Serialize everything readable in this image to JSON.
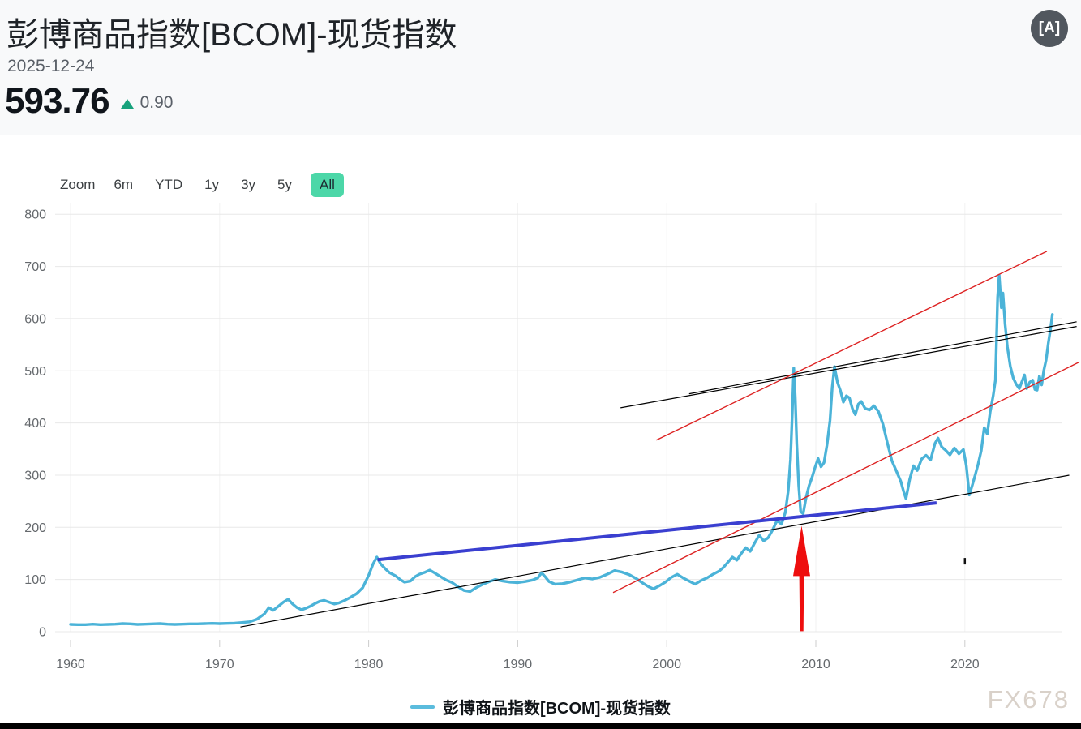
{
  "header": {
    "title": "彭博商品指数[BCOM]-现货指数",
    "date": "2025-12-24",
    "price": "593.76",
    "change": "0.90",
    "change_direction": "up",
    "change_color": "#17a27c",
    "lang_icon": "[A]"
  },
  "range_selector": {
    "zoom_label": "Zoom",
    "buttons": [
      "6m",
      "YTD",
      "1y",
      "3y",
      "5y",
      "All"
    ],
    "active": "All",
    "active_bg": "#4cd7a8"
  },
  "legend": {
    "series_label": "彭博商品指数[BCOM]-现货指数",
    "swatch_color": "#5bbcdd"
  },
  "watermark": "FX678",
  "chart_data": {
    "type": "line",
    "title": "彭博商品指数[BCOM]-现货指数",
    "xlabel": "",
    "ylabel": "",
    "xlim": [
      1959,
      2027.5
    ],
    "ylim": [
      0,
      800
    ],
    "x_ticks": [
      1960,
      1970,
      1980,
      1990,
      2000,
      2010,
      2020
    ],
    "y_ticks": [
      0,
      100,
      200,
      300,
      400,
      500,
      600,
      700,
      800
    ],
    "grid": true,
    "legend_position": "bottom",
    "style": {
      "h_grid": "#e8e8e8",
      "v_grid": "#f2f2f2",
      "tick": "#cccccc",
      "label": "#65696d"
    },
    "series": [
      {
        "name": "彭博商品指数[BCOM]-现货指数",
        "color": "#4bb3d8",
        "points": [
          [
            1960,
            14
          ],
          [
            1960.5,
            13.5
          ],
          [
            1961,
            13.5
          ],
          [
            1961.5,
            14.5
          ],
          [
            1962,
            13.5
          ],
          [
            1962.5,
            14
          ],
          [
            1963,
            14.5
          ],
          [
            1963.5,
            15.5
          ],
          [
            1964,
            15
          ],
          [
            1964.5,
            14
          ],
          [
            1965,
            14.5
          ],
          [
            1965.5,
            15
          ],
          [
            1966,
            15.5
          ],
          [
            1966.5,
            14.5
          ],
          [
            1967,
            14
          ],
          [
            1967.5,
            14.5
          ],
          [
            1968,
            15
          ],
          [
            1968.5,
            15
          ],
          [
            1969,
            15.5
          ],
          [
            1969.5,
            16
          ],
          [
            1970,
            15.5
          ],
          [
            1970.5,
            16
          ],
          [
            1971,
            16.5
          ],
          [
            1971.5,
            17.5
          ],
          [
            1972,
            19
          ],
          [
            1972.5,
            24
          ],
          [
            1973,
            34
          ],
          [
            1973.3,
            46
          ],
          [
            1973.6,
            41
          ],
          [
            1974,
            50
          ],
          [
            1974.3,
            57
          ],
          [
            1974.6,
            62
          ],
          [
            1974.9,
            53
          ],
          [
            1975.2,
            46
          ],
          [
            1975.5,
            42
          ],
          [
            1975.8,
            45
          ],
          [
            1976.1,
            49
          ],
          [
            1976.4,
            54
          ],
          [
            1976.7,
            58
          ],
          [
            1977,
            60
          ],
          [
            1977.3,
            57
          ],
          [
            1977.7,
            53
          ],
          [
            1978,
            55
          ],
          [
            1978.4,
            60
          ],
          [
            1978.8,
            66
          ],
          [
            1979.2,
            73
          ],
          [
            1979.6,
            84
          ],
          [
            1980,
            108
          ],
          [
            1980.3,
            130
          ],
          [
            1980.55,
            143
          ],
          [
            1980.8,
            130
          ],
          [
            1981.1,
            121
          ],
          [
            1981.4,
            113
          ],
          [
            1981.8,
            107
          ],
          [
            1982.1,
            100
          ],
          [
            1982.4,
            95
          ],
          [
            1982.8,
            97
          ],
          [
            1983.1,
            105
          ],
          [
            1983.4,
            110
          ],
          [
            1983.8,
            114
          ],
          [
            1984.1,
            118
          ],
          [
            1984.4,
            113
          ],
          [
            1984.8,
            106
          ],
          [
            1985.2,
            99
          ],
          [
            1985.6,
            94
          ],
          [
            1986,
            86
          ],
          [
            1986.4,
            79
          ],
          [
            1986.8,
            77
          ],
          [
            1987.2,
            84
          ],
          [
            1987.6,
            90
          ],
          [
            1988.1,
            96
          ],
          [
            1988.5,
            100
          ],
          [
            1989,
            97
          ],
          [
            1989.5,
            95
          ],
          [
            1990,
            94
          ],
          [
            1990.5,
            96
          ],
          [
            1991,
            99
          ],
          [
            1991.35,
            103
          ],
          [
            1991.6,
            113
          ],
          [
            1991.85,
            105
          ],
          [
            1992.1,
            96
          ],
          [
            1992.5,
            91
          ],
          [
            1993,
            92
          ],
          [
            1993.5,
            95
          ],
          [
            1994,
            99
          ],
          [
            1994.5,
            103
          ],
          [
            1995,
            101
          ],
          [
            1995.5,
            104
          ],
          [
            1996,
            110
          ],
          [
            1996.5,
            117
          ],
          [
            1997,
            114
          ],
          [
            1997.5,
            109
          ],
          [
            1998,
            101
          ],
          [
            1998.4,
            93
          ],
          [
            1998.8,
            86
          ],
          [
            1999.1,
            82
          ],
          [
            1999.5,
            88
          ],
          [
            1999.9,
            95
          ],
          [
            2000.3,
            104
          ],
          [
            2000.7,
            110
          ],
          [
            2001.1,
            103
          ],
          [
            2001.5,
            97
          ],
          [
            2001.9,
            91
          ],
          [
            2002.3,
            98
          ],
          [
            2002.7,
            103
          ],
          [
            2003.1,
            110
          ],
          [
            2003.5,
            116
          ],
          [
            2003.8,
            123
          ],
          [
            2004.1,
            133
          ],
          [
            2004.4,
            143
          ],
          [
            2004.7,
            137
          ],
          [
            2005,
            150
          ],
          [
            2005.3,
            161
          ],
          [
            2005.6,
            154
          ],
          [
            2005.9,
            170
          ],
          [
            2006.2,
            185
          ],
          [
            2006.5,
            174
          ],
          [
            2006.8,
            180
          ],
          [
            2007.1,
            195
          ],
          [
            2007.4,
            213
          ],
          [
            2007.7,
            206
          ],
          [
            2007.95,
            228
          ],
          [
            2008.15,
            270
          ],
          [
            2008.3,
            330
          ],
          [
            2008.42,
            420
          ],
          [
            2008.52,
            505
          ],
          [
            2008.62,
            450
          ],
          [
            2008.72,
            360
          ],
          [
            2008.85,
            280
          ],
          [
            2008.98,
            230
          ],
          [
            2009.15,
            226
          ],
          [
            2009.35,
            258
          ],
          [
            2009.55,
            280
          ],
          [
            2009.75,
            296
          ],
          [
            2009.95,
            315
          ],
          [
            2010.15,
            332
          ],
          [
            2010.35,
            316
          ],
          [
            2010.55,
            324
          ],
          [
            2010.75,
            358
          ],
          [
            2010.95,
            405
          ],
          [
            2011.1,
            468
          ],
          [
            2011.25,
            508
          ],
          [
            2011.45,
            478
          ],
          [
            2011.65,
            462
          ],
          [
            2011.85,
            440
          ],
          [
            2012.05,
            452
          ],
          [
            2012.25,
            448
          ],
          [
            2012.45,
            428
          ],
          [
            2012.65,
            416
          ],
          [
            2012.85,
            436
          ],
          [
            2013.05,
            441
          ],
          [
            2013.3,
            428
          ],
          [
            2013.6,
            425
          ],
          [
            2013.9,
            433
          ],
          [
            2014.2,
            422
          ],
          [
            2014.5,
            398
          ],
          [
            2014.8,
            362
          ],
          [
            2015.1,
            328
          ],
          [
            2015.4,
            308
          ],
          [
            2015.7,
            288
          ],
          [
            2015.9,
            268
          ],
          [
            2016.05,
            255
          ],
          [
            2016.3,
            292
          ],
          [
            2016.55,
            318
          ],
          [
            2016.8,
            309
          ],
          [
            2017.1,
            331
          ],
          [
            2017.4,
            338
          ],
          [
            2017.7,
            329
          ],
          [
            2018,
            361
          ],
          [
            2018.2,
            371
          ],
          [
            2018.45,
            354
          ],
          [
            2018.7,
            348
          ],
          [
            2019,
            339
          ],
          [
            2019.3,
            352
          ],
          [
            2019.6,
            341
          ],
          [
            2019.9,
            349
          ],
          [
            2020.1,
            318
          ],
          [
            2020.3,
            262
          ],
          [
            2020.5,
            281
          ],
          [
            2020.7,
            301
          ],
          [
            2020.9,
            322
          ],
          [
            2021.1,
            347
          ],
          [
            2021.3,
            391
          ],
          [
            2021.5,
            379
          ],
          [
            2021.7,
            421
          ],
          [
            2021.9,
            452
          ],
          [
            2022.05,
            482
          ],
          [
            2022.2,
            641
          ],
          [
            2022.3,
            683
          ],
          [
            2022.45,
            621
          ],
          [
            2022.55,
            649
          ],
          [
            2022.7,
            589
          ],
          [
            2022.85,
            546
          ],
          [
            2023.05,
            508
          ],
          [
            2023.25,
            486
          ],
          [
            2023.45,
            474
          ],
          [
            2023.65,
            466
          ],
          [
            2023.85,
            481
          ],
          [
            2024,
            492
          ],
          [
            2024.15,
            466
          ],
          [
            2024.35,
            478
          ],
          [
            2024.55,
            482
          ],
          [
            2024.7,
            464
          ],
          [
            2024.85,
            463
          ],
          [
            2025,
            490
          ],
          [
            2025.15,
            473
          ],
          [
            2025.3,
            501
          ],
          [
            2025.45,
            521
          ],
          [
            2025.6,
            553
          ],
          [
            2025.75,
            581
          ],
          [
            2025.87,
            608
          ]
        ]
      }
    ],
    "annotations": {
      "trend_lines": [
        {
          "name": "long-term-support-black",
          "color": "#000000",
          "width": 1.2,
          "from": [
            1971.4,
            9
          ],
          "to": [
            2027.0,
            300
          ]
        },
        {
          "name": "upper-black-1",
          "color": "#000000",
          "width": 1.2,
          "from": [
            1996.9,
            429
          ],
          "to": [
            2027.5,
            585
          ]
        },
        {
          "name": "upper-black-2",
          "color": "#000000",
          "width": 1.2,
          "from": [
            2001.5,
            456
          ],
          "to": [
            2027.5,
            594
          ]
        },
        {
          "name": "red-channel-upper",
          "color": "#dd2222",
          "width": 1.4,
          "from": [
            1999.3,
            367
          ],
          "to": [
            2025.5,
            729
          ]
        },
        {
          "name": "red-channel-lower",
          "color": "#dd2222",
          "width": 1.4,
          "from": [
            1996.4,
            75
          ],
          "to": [
            2027.7,
            517
          ]
        },
        {
          "name": "blue-neckline",
          "color": "#3a3fd0",
          "width": 4,
          "from": [
            1980.6,
            138
          ],
          "to": [
            2018.1,
            247
          ]
        }
      ],
      "arrow": {
        "name": "red-up-arrow",
        "color": "#ee0e0e",
        "x_year": 2009.05,
        "from_value": 1,
        "to_value": 203
      },
      "tick_mark": {
        "name": "stray-tick",
        "x_year": 2020.0,
        "value": 135
      }
    }
  }
}
